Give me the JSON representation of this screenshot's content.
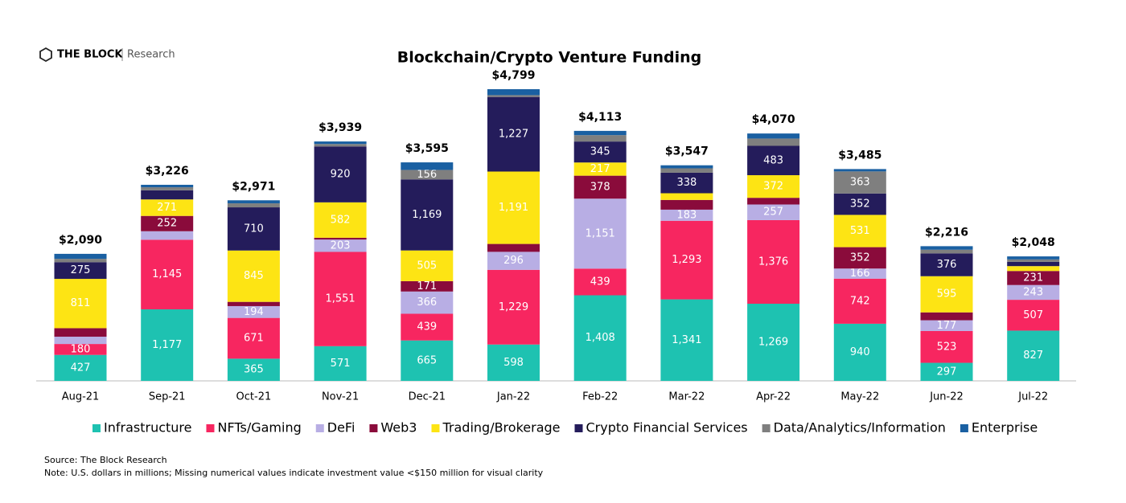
{
  "brand": {
    "name": "THE BLOCK",
    "sub": "Research"
  },
  "chart_data": {
    "type": "stacked-bar",
    "title": "Blockchain/Crypto Venture Funding",
    "categories": [
      "Aug-21",
      "Sep-21",
      "Oct-21",
      "Nov-21",
      "Dec-21",
      "Jan-22",
      "Feb-22",
      "Mar-22",
      "Apr-22",
      "May-22",
      "Jun-22",
      "Jul-22"
    ],
    "series": [
      {
        "name": "Infrastructure",
        "color": "#1ec2b1",
        "values": [
          427,
          1177,
          365,
          571,
          665,
          598,
          1408,
          1341,
          1269,
          940,
          297,
          827
        ],
        "value_labels": [
          "427",
          "1,177",
          "365",
          "571",
          "665",
          "598",
          "1,408",
          "1,341",
          "1,269",
          "940",
          "297",
          "827"
        ]
      },
      {
        "name": "NFTs/Gaming",
        "color": "#f72660",
        "values": [
          180,
          1145,
          671,
          1551,
          439,
          1229,
          439,
          1293,
          1376,
          742,
          523,
          507
        ],
        "value_labels": [
          "180",
          "1,145",
          "671",
          "1,551",
          "439",
          "1,229",
          "439",
          "1,293",
          "1,376",
          "742",
          "523",
          "507"
        ]
      },
      {
        "name": "DeFi",
        "color": "#b8aee4",
        "values": [
          120,
          140,
          194,
          203,
          366,
          296,
          1151,
          183,
          257,
          166,
          177,
          243
        ],
        "value_labels": [
          null,
          null,
          "194",
          "203",
          "366",
          "296",
          "1,151",
          "183",
          "257",
          "166",
          "177",
          "243"
        ]
      },
      {
        "name": "Web3",
        "color": "#8a0b3b",
        "values": [
          140,
          252,
          70,
          30,
          171,
          130,
          378,
          160,
          110,
          352,
          130,
          231
        ],
        "value_labels": [
          null,
          "252",
          null,
          null,
          "171",
          null,
          "378",
          null,
          null,
          "352",
          null,
          "231"
        ]
      },
      {
        "name": "Trading/Brokerage",
        "color": "#fde414",
        "values": [
          811,
          271,
          845,
          582,
          505,
          1191,
          217,
          110,
          372,
          531,
          595,
          80
        ],
        "value_labels": [
          "811",
          "271",
          "845",
          "582",
          "505",
          "1,191",
          "217",
          null,
          "372",
          "531",
          "595",
          null
        ]
      },
      {
        "name": "Crypto Financial Services",
        "color": "#241c5b",
        "values": [
          275,
          150,
          710,
          920,
          1169,
          1227,
          345,
          338,
          483,
          352,
          376,
          70
        ],
        "value_labels": [
          "275",
          null,
          "710",
          "920",
          "1,169",
          "1,227",
          "345",
          "338",
          "483",
          "352",
          "376",
          null
        ]
      },
      {
        "name": "Data/Analytics/Information",
        "color": "#7f7f7f",
        "values": [
          55,
          50,
          66,
          40,
          156,
          30,
          105,
          72,
          120,
          363,
          60,
          40
        ],
        "value_labels": [
          null,
          null,
          null,
          null,
          "156",
          null,
          null,
          null,
          null,
          "363",
          null,
          null
        ]
      },
      {
        "name": "Enterprise",
        "color": "#1a60a2",
        "values": [
          82,
          41,
          50,
          42,
          124,
          98,
          70,
          50,
          83,
          39,
          58,
          50
        ],
        "value_labels": [
          null,
          null,
          null,
          null,
          null,
          null,
          null,
          null,
          null,
          null,
          null,
          null
        ]
      }
    ],
    "totals": [
      2090,
      3226,
      2971,
      3939,
      3595,
      4799,
      4113,
      3547,
      4070,
      3485,
      2216,
      2048
    ],
    "total_labels": [
      "$2,090",
      "$3,226",
      "$2,971",
      "$3,939",
      "$3,595",
      "$4,799",
      "$4,113",
      "$3,547",
      "$4,070",
      "$3,485",
      "$2,216",
      "$2,048"
    ],
    "legend": "bottom"
  },
  "source": "Source: The Block Research",
  "note": "Note: U.S. dollars in millions; Missing numerical values indicate investment value <$150 million for visual clarity"
}
